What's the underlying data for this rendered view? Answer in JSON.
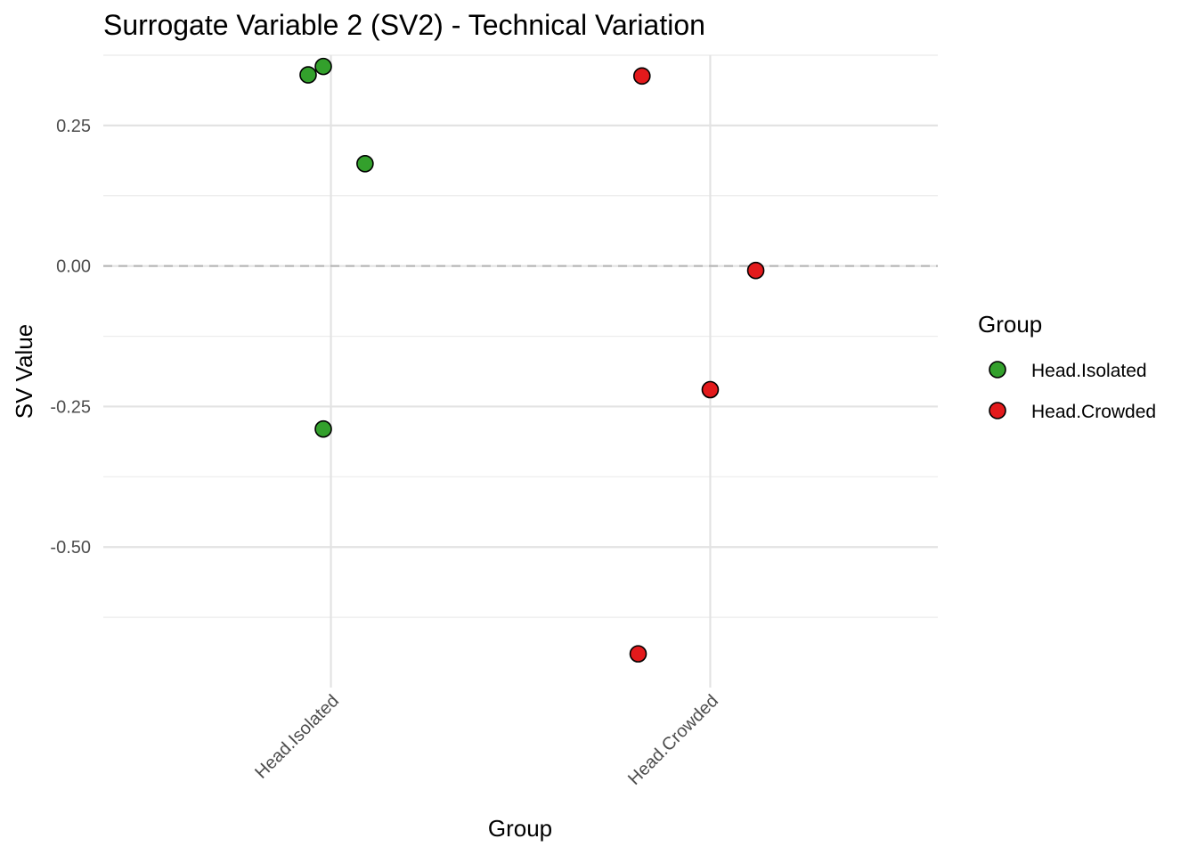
{
  "chart_data": {
    "type": "scatter",
    "title": "Surrogate Variable 2 (SV2) - Technical Variation",
    "xlabel": "Group",
    "ylabel": "SV Value",
    "categories": [
      "Head.Isolated",
      "Head.Crowded"
    ],
    "ylim": [
      -0.75,
      0.375
    ],
    "yticks": [
      0.25,
      0.0,
      -0.25,
      -0.5
    ],
    "ytick_labels": [
      "0.25",
      "0.00",
      "-0.25",
      "-0.50"
    ],
    "reference_line": {
      "y": 0.0,
      "style": "dashed",
      "color": "#b3b3b3"
    },
    "grid": true,
    "legend": {
      "title": "Group",
      "position": "right",
      "entries": [
        "Head.Isolated",
        "Head.Crowded"
      ]
    },
    "series": [
      {
        "name": "Head.Isolated",
        "color": "#33a02c",
        "points": [
          {
            "category": "Head.Isolated",
            "x": 0.94,
            "y": 0.34
          },
          {
            "category": "Head.Isolated",
            "x": 0.98,
            "y": 0.355
          },
          {
            "category": "Head.Isolated",
            "x": 1.09,
            "y": 0.182
          },
          {
            "category": "Head.Isolated",
            "x": 0.98,
            "y": -0.29
          }
        ]
      },
      {
        "name": "Head.Crowded",
        "color": "#e31a1c",
        "points": [
          {
            "category": "Head.Crowded",
            "x": 1.82,
            "y": 0.338
          },
          {
            "category": "Head.Crowded",
            "x": 2.12,
            "y": -0.008
          },
          {
            "category": "Head.Crowded",
            "x": 2.0,
            "y": -0.22
          },
          {
            "category": "Head.Crowded",
            "x": 1.81,
            "y": -0.69
          }
        ]
      }
    ]
  }
}
